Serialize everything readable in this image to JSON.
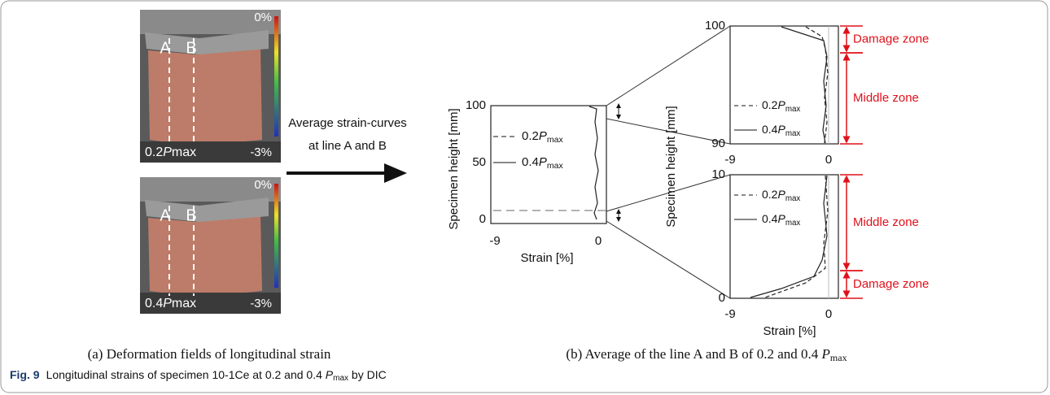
{
  "figure": {
    "panel_a": {
      "arrow_text": [
        "Average strain-curves",
        "at line A and B"
      ],
      "photos": [
        {
          "line_a": "A",
          "line_b": "B",
          "scale_max": "0%",
          "scale_min": "-3%",
          "load_value": "0.2",
          "load_symbol": "P",
          "load_sub": "max"
        },
        {
          "line_a": "A",
          "line_b": "B",
          "scale_max": "0%",
          "scale_min": "-3%",
          "load_value": "0.4",
          "load_symbol": "P",
          "load_sub": "max"
        }
      ],
      "caption": "(a) Deformation fields of longitudinal strain"
    },
    "panel_b": {
      "overview": {
        "y_label": "Specimen height [mm]",
        "x_label": "Strain [%]",
        "yticks": [
          "100",
          "50",
          "0"
        ],
        "xticks": [
          "-9",
          "0"
        ],
        "legend": [
          {
            "value": "0.2",
            "symbol": "P",
            "sub": "max"
          },
          {
            "value": "0.4",
            "symbol": "P",
            "sub": "max"
          }
        ]
      },
      "detail": {
        "y_label": "Specimen height [mm]",
        "x_label": "Strain [%]",
        "top": {
          "yticks": [
            "100",
            "90"
          ],
          "xticks": [
            "-9",
            "0"
          ],
          "legend": [
            {
              "value": "0.2",
              "symbol": "P",
              "sub": "max"
            },
            {
              "value": "0.4",
              "symbol": "P",
              "sub": "max"
            }
          ],
          "zones": [
            "Damage zone",
            "Middle zone"
          ]
        },
        "bottom": {
          "yticks": [
            "10",
            "0"
          ],
          "xticks": [
            "-9",
            "0"
          ],
          "legend": [
            {
              "value": "0.2",
              "symbol": "P",
              "sub": "max"
            },
            {
              "value": "0.4",
              "symbol": "P",
              "sub": "max"
            }
          ],
          "zones": [
            "Middle zone",
            "Damage zone"
          ]
        }
      },
      "caption": {
        "text": "(b) Average of the line A and B of 0.2 and 0.4 ",
        "symbol": "P",
        "sub": "max"
      }
    },
    "caption": {
      "label": "Fig. 9",
      "text": "Longitudinal strains of specimen 10-1Ce at 0.2 and 0.4 ",
      "symbol": "P",
      "sub": "max",
      "tail": " by DIC"
    }
  }
}
